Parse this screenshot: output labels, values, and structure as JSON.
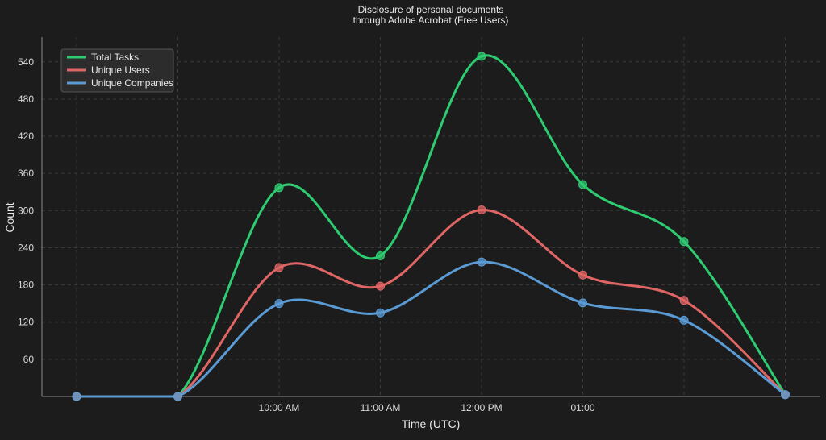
{
  "chart_data": {
    "type": "line",
    "title_lines": [
      "Disclosure of personal documents",
      "through Adobe Acrobat (Free Users)"
    ],
    "xlabel": "Time (UTC)",
    "ylabel": "Count",
    "categories": [
      "",
      "",
      "10:00 AM",
      "11:00 AM",
      "12:00 PM",
      "01:00",
      "",
      ""
    ],
    "ylim": [
      0,
      580
    ],
    "yticks": [
      60,
      120,
      180,
      240,
      300,
      360,
      420,
      480,
      540
    ],
    "grid": true,
    "legend_position": "top-left",
    "smooth": true,
    "series": [
      {
        "name": "Total Tasks",
        "color": "#2ecc71",
        "values": [
          0,
          0,
          337,
          227,
          549,
          342,
          250,
          3
        ]
      },
      {
        "name": "Unique Users",
        "color": "#e06666",
        "values": [
          0,
          0,
          208,
          178,
          301,
          196,
          155,
          3
        ]
      },
      {
        "name": "Unique Companies",
        "color": "#5b9bd5",
        "values": [
          0,
          0,
          150,
          135,
          217,
          151,
          123,
          3
        ]
      }
    ]
  }
}
